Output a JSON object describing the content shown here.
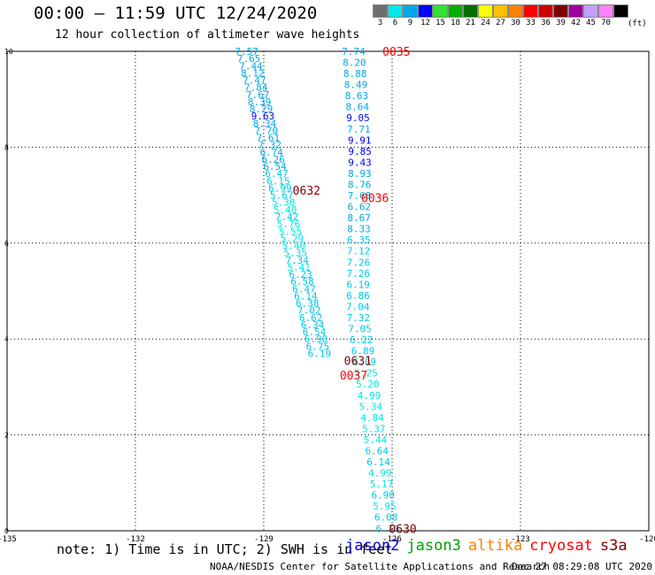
{
  "header": {
    "title": "00:00 – 11:59 UTC 12/24/2020",
    "subtitle": "12 hour collection of altimeter wave heights"
  },
  "legend": {
    "unit": "(ft)",
    "bins": [
      {
        "label": "3",
        "color": "#6e6e6e"
      },
      {
        "label": "6",
        "color": "#00e8e8"
      },
      {
        "label": "9",
        "color": "#00a8e8"
      },
      {
        "label": "12",
        "color": "#0000ff"
      },
      {
        "label": "15",
        "color": "#33e033"
      },
      {
        "label": "18",
        "color": "#00b000"
      },
      {
        "label": "21",
        "color": "#007000"
      },
      {
        "label": "24",
        "color": "#ffff00"
      },
      {
        "label": "27",
        "color": "#ffc000"
      },
      {
        "label": "30",
        "color": "#ff8000"
      },
      {
        "label": "33",
        "color": "#ff0000"
      },
      {
        "label": "36",
        "color": "#d00000"
      },
      {
        "label": "39",
        "color": "#800000"
      },
      {
        "label": "42",
        "color": "#a000a0"
      },
      {
        "label": "45",
        "color": "#c0a0ff"
      },
      {
        "label": "70",
        "color": "#ff80ff"
      },
      {
        "label": "",
        "color": "#000000"
      }
    ]
  },
  "footer": {
    "note": "note: 1) Time is in UTC; 2) SWH is in feet",
    "credit": "NOAA/NESDIS Center for Satellite Applications and Research",
    "timestamp": "Dec 27 08:29:08 UTC 2020",
    "satellites": [
      {
        "name": "jason2",
        "color": "#0000dd"
      },
      {
        "name": "jason3",
        "color": "#00a000"
      },
      {
        "name": "altika",
        "color": "#ff8000"
      },
      {
        "name": "cryosat",
        "color": "#ff0000"
      },
      {
        "name": "s3a",
        "color": "#800000"
      }
    ]
  },
  "chart_data": {
    "type": "scatter",
    "xlim": [
      -135,
      -120
    ],
    "ylim": [
      0,
      10
    ],
    "xticks": [
      "-135",
      "-132",
      "-129",
      "-126",
      "-123",
      "-120"
    ],
    "yticks": [
      "0",
      "2",
      "4",
      "6",
      "8",
      "10"
    ],
    "grid": true,
    "tracks": [
      {
        "points": [
          {
            "x": -129.4,
            "y": 10.0,
            "v": "7.57",
            "color": "#00a8e8"
          },
          {
            "x": -129.35,
            "y": 9.85,
            "v": "7.65",
            "color": "#00a8e8"
          },
          {
            "x": -129.3,
            "y": 9.7,
            "v": "7.44",
            "color": "#00a8e8"
          },
          {
            "x": -129.26,
            "y": 9.55,
            "v": "8.12",
            "color": "#00a8e8"
          },
          {
            "x": -129.22,
            "y": 9.4,
            "v": "7.47",
            "color": "#00a8e8"
          },
          {
            "x": -129.18,
            "y": 9.25,
            "v": "7.84",
            "color": "#00a8e8"
          },
          {
            "x": -129.14,
            "y": 9.1,
            "v": "7.67",
            "color": "#00a8e8"
          },
          {
            "x": -129.1,
            "y": 8.95,
            "v": "8.39",
            "color": "#00a8e8"
          },
          {
            "x": -129.06,
            "y": 8.8,
            "v": "8.29",
            "color": "#00a8e8"
          },
          {
            "x": -129.02,
            "y": 8.65,
            "v": "9.63",
            "color": "#0000ff"
          },
          {
            "x": -128.98,
            "y": 8.5,
            "v": "8.34",
            "color": "#00a8e8"
          },
          {
            "x": -128.94,
            "y": 8.35,
            "v": "7.70",
            "color": "#00a8e8"
          },
          {
            "x": -128.9,
            "y": 8.2,
            "v": "7.61",
            "color": "#00a8e8"
          },
          {
            "x": -128.86,
            "y": 8.05,
            "v": "7.32",
            "color": "#00a8e8"
          },
          {
            "x": -128.82,
            "y": 7.9,
            "v": "6.74",
            "color": "#00a8e8"
          },
          {
            "x": -128.78,
            "y": 7.75,
            "v": "6.26",
            "color": "#00a8e8"
          },
          {
            "x": -128.74,
            "y": 7.6,
            "v": "6.54",
            "color": "#00a8e8"
          },
          {
            "x": -128.7,
            "y": 7.45,
            "v": "6.47",
            "color": "#00c8e8"
          },
          {
            "x": -128.66,
            "y": 7.3,
            "v": "6.15",
            "color": "#00c8e8"
          },
          {
            "x": -128.62,
            "y": 7.15,
            "v": "6.99",
            "color": "#00c8e8"
          },
          {
            "x": -128.58,
            "y": 7.0,
            "v": "5.67",
            "color": "#00c8e8"
          },
          {
            "x": -128.54,
            "y": 6.85,
            "v": "5.38",
            "color": "#00e8e8"
          },
          {
            "x": -128.5,
            "y": 6.7,
            "v": "5.40",
            "color": "#00e8e8"
          },
          {
            "x": -128.46,
            "y": 6.55,
            "v": "7.42",
            "color": "#00c8e8"
          },
          {
            "x": -128.42,
            "y": 6.4,
            "v": "5.76",
            "color": "#00e8e8"
          },
          {
            "x": -128.38,
            "y": 6.25,
            "v": "5.55",
            "color": "#00e8e8"
          },
          {
            "x": -128.34,
            "y": 6.1,
            "v": "5.29",
            "color": "#00e8e8"
          },
          {
            "x": -128.3,
            "y": 5.95,
            "v": "5.40",
            "color": "#00e8e8"
          },
          {
            "x": -128.26,
            "y": 5.8,
            "v": "5.35",
            "color": "#00e8e8"
          },
          {
            "x": -128.22,
            "y": 5.65,
            "v": "7.34",
            "color": "#00c8e8"
          },
          {
            "x": -128.18,
            "y": 5.5,
            "v": "5.41",
            "color": "#00e8e8"
          },
          {
            "x": -128.14,
            "y": 5.35,
            "v": "6.23",
            "color": "#00c8e8"
          },
          {
            "x": -128.1,
            "y": 5.2,
            "v": "6.58",
            "color": "#00c8e8"
          },
          {
            "x": -128.06,
            "y": 5.05,
            "v": "6.47",
            "color": "#00c8e8"
          },
          {
            "x": -128.02,
            "y": 4.9,
            "v": "6.14",
            "color": "#00c8e8"
          },
          {
            "x": -127.98,
            "y": 4.75,
            "v": "6.38",
            "color": "#00c8e8"
          },
          {
            "x": -127.94,
            "y": 4.6,
            "v": "7.02",
            "color": "#00c8e8"
          },
          {
            "x": -127.9,
            "y": 4.45,
            "v": "6.62",
            "color": "#00c8e8"
          },
          {
            "x": -127.86,
            "y": 4.3,
            "v": "6.34",
            "color": "#00c8e8"
          },
          {
            "x": -127.82,
            "y": 4.15,
            "v": "6.54",
            "color": "#00c8e8"
          },
          {
            "x": -127.78,
            "y": 4.0,
            "v": "6.90",
            "color": "#00c8e8"
          },
          {
            "x": -127.74,
            "y": 3.85,
            "v": "6.75",
            "color": "#00c8e8"
          },
          {
            "x": -127.7,
            "y": 3.7,
            "v": "6.19",
            "color": "#00c8e8"
          }
        ]
      }
    ],
    "tracks2": [
      {
        "points": [
          {
            "v": "7.74",
            "color": "#00a8e8"
          },
          {
            "v": "8.20",
            "color": "#00a8e8"
          },
          {
            "v": "8.88",
            "color": "#00a8e8"
          },
          {
            "v": "8.49",
            "color": "#00a8e8"
          },
          {
            "v": "8.63",
            "color": "#00a8e8"
          },
          {
            "v": "8.64",
            "color": "#00a8e8"
          },
          {
            "v": "9.05",
            "color": "#0000ff"
          },
          {
            "v": "7.71",
            "color": "#00a8e8"
          },
          {
            "v": "9.91",
            "color": "#0000ff"
          },
          {
            "v": "9.85",
            "color": "#0000ff"
          },
          {
            "v": "9.43",
            "color": "#0000ff"
          },
          {
            "v": "8.93",
            "color": "#00a8e8"
          },
          {
            "v": "8.76",
            "color": "#00a8e8"
          },
          {
            "v": "7.68",
            "color": "#00a8e8"
          },
          {
            "v": "6.62",
            "color": "#00a8e8"
          },
          {
            "v": "8.67",
            "color": "#00a8e8"
          },
          {
            "v": "8.33",
            "color": "#00a8e8"
          },
          {
            "v": "6.35",
            "color": "#00c8e8"
          },
          {
            "v": "7.12",
            "color": "#00c8e8"
          },
          {
            "v": "7.26",
            "color": "#00c8e8"
          },
          {
            "v": "7.26",
            "color": "#00c8e8"
          },
          {
            "v": "6.19",
            "color": "#00c8e8"
          },
          {
            "v": "6.86",
            "color": "#00c8e8"
          },
          {
            "v": "7.04",
            "color": "#00c8e8"
          },
          {
            "v": "7.32",
            "color": "#00c8e8"
          },
          {
            "v": "7.05",
            "color": "#00c8e8"
          },
          {
            "v": "6.22",
            "color": "#00c8e8"
          },
          {
            "v": "6.89",
            "color": "#00c8e8"
          },
          {
            "v": "6.09",
            "color": "#00c8e8"
          },
          {
            "v": "5.25",
            "color": "#00e8e8"
          },
          {
            "v": "5.20",
            "color": "#00e8e8"
          },
          {
            "v": "4.99",
            "color": "#00e8e8"
          },
          {
            "v": "5.34",
            "color": "#00e8e8"
          },
          {
            "v": "4.84",
            "color": "#00e8e8"
          },
          {
            "v": "5.37",
            "color": "#00e8e8"
          },
          {
            "v": "5.44",
            "color": "#00e8e8"
          },
          {
            "v": "6.64",
            "color": "#00c8e8"
          },
          {
            "v": "6.14",
            "color": "#00c8e8"
          },
          {
            "v": "4.99",
            "color": "#00e8e8"
          },
          {
            "v": "5.17",
            "color": "#00e8e8"
          },
          {
            "v": "6.90",
            "color": "#00c8e8"
          },
          {
            "v": "5.95",
            "color": "#00e8e8"
          },
          {
            "v": "6.08",
            "color": "#00c8e8"
          },
          {
            "v": "6.10",
            "color": "#00c8e8"
          }
        ]
      }
    ],
    "time_labels": [
      {
        "text": "0035",
        "x": -125.9,
        "y": 10.0,
        "color": "#ff0000"
      },
      {
        "text": "0632",
        "x": -128.0,
        "y": 7.1,
        "color": "#800000"
      },
      {
        "text": "0036",
        "x": -126.4,
        "y": 6.95,
        "color": "#ff0000"
      },
      {
        "text": "0631",
        "x": -126.8,
        "y": 3.55,
        "color": "#800000"
      },
      {
        "text": "0037",
        "x": -126.9,
        "y": 3.25,
        "color": "#ff0000"
      },
      {
        "text": "0630",
        "x": -125.75,
        "y": 0.05,
        "color": "#800000"
      }
    ]
  }
}
